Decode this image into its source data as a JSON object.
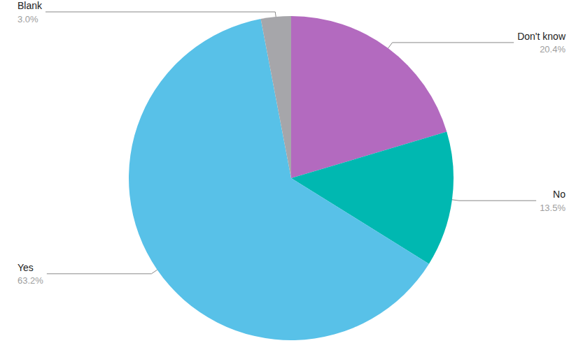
{
  "chart_data": {
    "type": "pie",
    "categories": [
      "Don't know",
      "No",
      "Yes",
      "Blank"
    ],
    "values": [
      20.4,
      13.5,
      63.2,
      3.0
    ],
    "value_labels": [
      "20.4%",
      "13.5%",
      "63.2%",
      "3.0%"
    ],
    "colors": [
      "#b36abf",
      "#00b8b1",
      "#58c1e8",
      "#a6a6aa"
    ],
    "data_labels": true
  }
}
